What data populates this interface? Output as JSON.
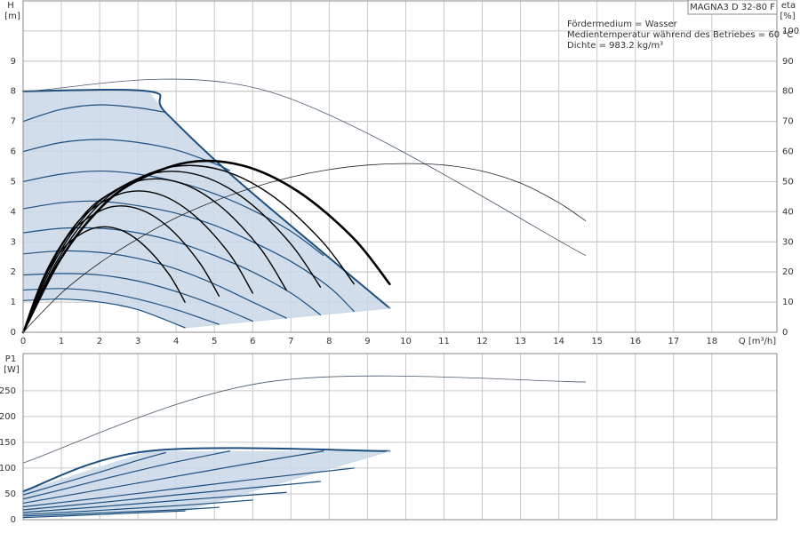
{
  "chart_data": [
    {
      "type": "line",
      "y_label": "H",
      "y_unit": "[m]",
      "y2_label": "eta",
      "y2_unit": "[%]",
      "x_label": "Q [m³/h]",
      "title": "MAGNA3 D 32-80 F",
      "annotations": [
        "Fördermedium = Wasser",
        "Medientemperatur während des Betriebes = 60 °C",
        "Dichte = 983.2 kg/m³"
      ],
      "xlim": [
        0,
        19.7
      ],
      "xticks": [
        0,
        1,
        2,
        3,
        4,
        5,
        6,
        7,
        8,
        9,
        10,
        11,
        12,
        13,
        14,
        15,
        16,
        17,
        18
      ],
      "ylim": [
        0,
        11
      ],
      "yticks": [
        0,
        1,
        2,
        3,
        4,
        5,
        6,
        7,
        8,
        9
      ],
      "y2lim": [
        0,
        110
      ],
      "y2ticks": [
        0,
        10,
        20,
        30,
        40,
        50,
        60,
        70,
        80,
        90,
        100
      ],
      "grid": true,
      "area_color": "#c9d7e6",
      "series": [
        {
          "color": "#1c4f80",
          "line_width": 2,
          "x": [
            0,
            3.28,
            3.72,
            5.67,
            9.58
          ],
          "values": [
            8,
            8,
            7.3,
            4.97,
            0.8
          ]
        },
        {
          "color": "#c9d7e6",
          "line_width": 1,
          "x": [
            4.23,
            9.58
          ],
          "values": [
            0.15,
            0.8
          ]
        },
        {
          "color": "#1c4f80",
          "line_width": 1.2,
          "x": [
            0,
            1,
            2,
            3,
            3.72
          ],
          "values": [
            7,
            7.4,
            7.55,
            7.45,
            7.3
          ]
        },
        {
          "color": "#1c4f80",
          "line_width": 1.2,
          "x": [
            0,
            1,
            2,
            3,
            4,
            5,
            5.4
          ],
          "values": [
            6,
            6.3,
            6.4,
            6.3,
            6.05,
            5.6,
            5.37
          ]
        },
        {
          "color": "#1c4f80",
          "line_width": 1.2,
          "x": [
            0,
            1,
            2,
            3,
            4,
            5,
            6,
            7,
            7.85
          ],
          "values": [
            5,
            5.25,
            5.35,
            5.25,
            5,
            4.6,
            4.05,
            3.35,
            2.55
          ]
        },
        {
          "color": "#1c4f80",
          "line_width": 1.2,
          "x": [
            0,
            1,
            2,
            3,
            4,
            5,
            6,
            7,
            8,
            8.65
          ],
          "values": [
            4.1,
            4.3,
            4.35,
            4.2,
            3.95,
            3.55,
            3,
            2.35,
            1.5,
            0.69
          ]
        },
        {
          "color": "#1c4f80",
          "line_width": 1.2,
          "x": [
            0,
            1,
            2,
            3,
            4,
            5,
            6,
            7,
            7.77
          ],
          "values": [
            3.3,
            3.45,
            3.45,
            3.3,
            3,
            2.55,
            2,
            1.3,
            0.58
          ]
        },
        {
          "color": "#1c4f80",
          "line_width": 1.2,
          "x": [
            0,
            1,
            2,
            3,
            4,
            5,
            6,
            6.88
          ],
          "values": [
            2.6,
            2.7,
            2.65,
            2.45,
            2.1,
            1.6,
            1,
            0.47
          ]
        },
        {
          "color": "#1c4f80",
          "line_width": 1.2,
          "x": [
            0,
            1,
            2,
            3,
            4,
            5,
            6
          ],
          "values": [
            1.9,
            1.95,
            1.9,
            1.7,
            1.35,
            0.9,
            0.37
          ]
        },
        {
          "color": "#1c4f80",
          "line_width": 1.2,
          "x": [
            0,
            1,
            2,
            3,
            4,
            5.12
          ],
          "values": [
            1.4,
            1.45,
            1.35,
            1.1,
            0.75,
            0.26
          ]
        },
        {
          "color": "#1c4f80",
          "line_width": 1.2,
          "x": [
            0,
            1,
            2,
            3,
            4.23
          ],
          "values": [
            1.05,
            1.1,
            1,
            0.75,
            0.15
          ]
        },
        {
          "color": "#4a5a6a",
          "line_width": 0.8,
          "x": [
            0,
            6.4,
            14.7
          ],
          "values": [
            8,
            8,
            2.55
          ]
        },
        {
          "color": "#222222",
          "line_width": 0.8,
          "axis": "y2",
          "x": [
            0,
            1,
            2,
            3,
            4,
            5,
            6,
            7,
            8,
            9,
            10,
            11,
            12,
            13,
            14,
            14.7
          ],
          "values": [
            0,
            13,
            23,
            31,
            38,
            43.5,
            48,
            51.5,
            54,
            55.5,
            56,
            55.5,
            53.5,
            49.5,
            43,
            37
          ]
        },
        {
          "color": "#000000",
          "line_width": 1.4,
          "axis": "y2",
          "x": [
            0,
            0.42,
            0.85,
            1.27,
            1.9,
            2.54,
            3.17,
            3.81,
            4.23
          ],
          "values": [
            0,
            14.7,
            24.5,
            30.5,
            34.7,
            34,
            28.7,
            19.3,
            10
          ]
        },
        {
          "color": "#000000",
          "line_width": 1.4,
          "axis": "y2",
          "x": [
            0,
            0.51,
            1.02,
            1.54,
            2.3,
            3.07,
            3.84,
            4.61,
            5.12
          ],
          "values": [
            0,
            17.6,
            29.4,
            36.5,
            41.6,
            40.7,
            34.4,
            23.1,
            12
          ]
        },
        {
          "color": "#000000",
          "line_width": 1.4,
          "axis": "y2",
          "x": [
            0,
            0.6,
            1.2,
            1.8,
            2.7,
            3.6,
            4.5,
            5.4,
            6
          ],
          "values": [
            0,
            19.7,
            32.9,
            40.9,
            46.5,
            45.6,
            38.5,
            25.9,
            13
          ]
        },
        {
          "color": "#000000",
          "line_width": 1.4,
          "axis": "y2",
          "x": [
            0,
            0.69,
            1.38,
            2.06,
            3.1,
            4.13,
            5.16,
            6.19,
            6.88
          ],
          "values": [
            0,
            21.4,
            35.7,
            44.4,
            50.5,
            49.5,
            41.8,
            28,
            14
          ]
        },
        {
          "color": "#000000",
          "line_width": 1.4,
          "axis": "y2",
          "x": [
            0,
            0.78,
            1.55,
            2.33,
            3.5,
            4.66,
            5.83,
            6.99,
            7.77
          ],
          "values": [
            0,
            22.5,
            37.5,
            46.5,
            53,
            51.9,
            43.9,
            29.4,
            15
          ]
        },
        {
          "color": "#000000",
          "line_width": 1.4,
          "axis": "y2",
          "x": [
            0,
            0.87,
            1.73,
            2.6,
            3.89,
            5.19,
            6.49,
            7.79,
            8.65
          ],
          "values": [
            0,
            23.3,
            38.9,
            48.3,
            54.9,
            53.8,
            45.5,
            30.5,
            16
          ]
        },
        {
          "color": "#000000",
          "line_width": 2.6,
          "axis": "y2",
          "x": [
            0,
            0.96,
            1.92,
            2.87,
            4.31,
            5.75,
            7.19,
            8.62,
            9.58
          ],
          "values": [
            0,
            23.9,
            39.9,
            49.6,
            56.4,
            55.3,
            46.7,
            31.4,
            16
          ]
        }
      ]
    },
    {
      "type": "line",
      "y_label": "P1",
      "y_unit": "[W]",
      "xlim": [
        0,
        19.7
      ],
      "ylim": [
        0,
        322
      ],
      "yticks": [
        0,
        50,
        100,
        150,
        200,
        250
      ],
      "grid": true,
      "area_color": "#c9d7e6",
      "series": [
        {
          "color": "#1c4f80",
          "line_width": 2,
          "x": [
            0,
            3.28,
            9.58
          ],
          "values": [
            55,
            133,
            133
          ]
        },
        {
          "color": "#c9d7e6",
          "line_width": 1,
          "x": [
            4.23,
            9.58
          ],
          "values": [
            17,
            133
          ]
        },
        {
          "color": "#1c4f80",
          "line_width": 1.2,
          "x": [
            0,
            1,
            2,
            3,
            3.72
          ],
          "values": [
            48,
            70,
            92,
            115,
            130
          ]
        },
        {
          "color": "#1c4f80",
          "line_width": 1.2,
          "x": [
            0,
            1,
            2,
            3,
            4,
            5.4
          ],
          "values": [
            40,
            58,
            77,
            95,
            112,
            133
          ]
        },
        {
          "color": "#1c4f80",
          "line_width": 1.2,
          "x": [
            0,
            2,
            4,
            6,
            7.85
          ],
          "values": [
            32,
            58,
            84,
            110,
            133
          ]
        },
        {
          "color": "#1c4f80",
          "line_width": 1.2,
          "x": [
            0,
            2,
            4,
            6,
            8.65
          ],
          "values": [
            25,
            42,
            60,
            78,
            100
          ]
        },
        {
          "color": "#1c4f80",
          "line_width": 1.2,
          "x": [
            0,
            2,
            4,
            6,
            7.77
          ],
          "values": [
            19,
            33,
            48,
            62,
            74
          ]
        },
        {
          "color": "#1c4f80",
          "line_width": 1.2,
          "x": [
            0,
            2,
            4,
            6,
            6.88
          ],
          "values": [
            14,
            25,
            37,
            48,
            53
          ]
        },
        {
          "color": "#1c4f80",
          "line_width": 1.2,
          "x": [
            0,
            2,
            4,
            6
          ],
          "values": [
            10,
            18,
            27,
            38
          ]
        },
        {
          "color": "#1c4f80",
          "line_width": 1.2,
          "x": [
            0,
            2,
            4,
            5.12
          ],
          "values": [
            7,
            13,
            19,
            24
          ]
        },
        {
          "color": "#1c4f80",
          "line_width": 1.2,
          "x": [
            0,
            2,
            4.23
          ],
          "values": [
            4,
            10,
            17
          ]
        },
        {
          "color": "#4a5a6a",
          "line_width": 0.8,
          "x": [
            0,
            6.4,
            14.7
          ],
          "values": [
            110,
            267,
            267
          ]
        }
      ]
    }
  ]
}
